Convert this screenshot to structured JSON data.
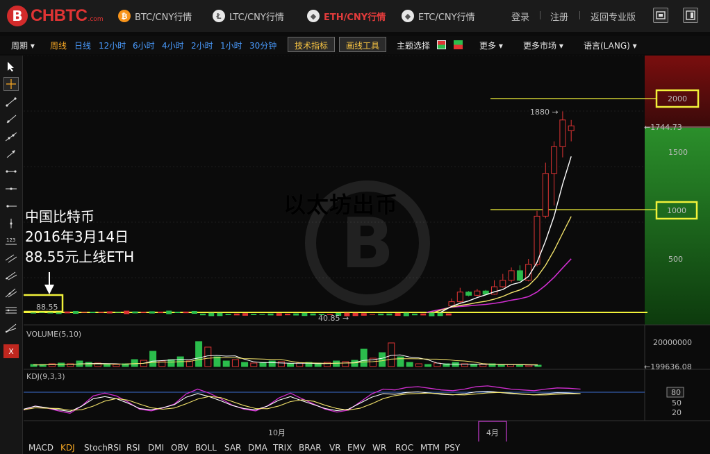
{
  "header": {
    "logo_text": "CHBTC",
    "logo_suffix": ".com",
    "logo_mark": "B",
    "markets": [
      {
        "label": "BTC/CNY行情",
        "icon": "bitcoin-icon",
        "glyph": "₿",
        "color": "#f7931a",
        "active": false
      },
      {
        "label": "LTC/CNY行情",
        "icon": "litecoin-icon",
        "glyph": "Ł",
        "color": "#bfbfbf",
        "active": false
      },
      {
        "label": "ETH/CNY行情",
        "icon": "ethereum-icon",
        "glyph": "◆",
        "color": "#e0e0e0",
        "active": true
      },
      {
        "label": "ETC/CNY行情",
        "icon": "ethereum-classic-icon",
        "glyph": "◆",
        "color": "#e0e0e0",
        "active": false
      }
    ],
    "login": "登录",
    "register": "注册",
    "back_pro": "返回专业版"
  },
  "toolbar": {
    "period": "周期",
    "intervals": [
      "周线",
      "日线",
      "12小时",
      "6小时",
      "4小时",
      "2小时",
      "1小时",
      "30分钟"
    ],
    "active_interval": "周线",
    "tech_indicators": "技术指标",
    "drawing_tools": "画线工具",
    "theme": "主题选择",
    "more": "更多",
    "more_markets": "更多市场",
    "language": "语言(LANG)"
  },
  "rail_tools": [
    "cursor-icon",
    "crosshair-icon",
    "segment-icon",
    "ray-icon",
    "extended-line-icon",
    "arrow-line-icon",
    "horizontal-segment-icon",
    "horizontal-line-icon",
    "horizontal-ray-icon",
    "vertical-line-icon",
    "price-label-icon",
    "parallel-channel-icon",
    "fibonacci-icon",
    "pitchfork-icon",
    "fib-fan-icon",
    "measure-icon",
    "delete-icon"
  ],
  "annotation": {
    "line1": "中国比特币",
    "line2": "2016年3月14日",
    "line3": "88.55元上线ETH",
    "price_box": "88.55"
  },
  "watermark": "以太坊出币",
  "price_levels": {
    "high_line": "2000",
    "mid_line": "1000"
  },
  "chart_labels": {
    "high_marker": "1880 →",
    "low_marker": "40.85 →",
    "last_price": "←1744.73",
    "volume_title": "VOLUME(5,10)",
    "volume_last": "←199636.08",
    "kdj_title": "KDJ(9,3,3)",
    "x_label_oct": "10月",
    "x_label_apr": "4月",
    "close_tool": "X"
  },
  "colors": {
    "up": "#e03434",
    "down": "#2bbd4c",
    "ma5": "#ffffff",
    "ma10": "#f3e36b",
    "ma20": "#d12ed1",
    "kline_base": "#f2f23a",
    "bg": "#0b0b0b"
  },
  "chart_data": [
    {
      "type": "candlestick",
      "title": "ETH/CNY",
      "y_ticks": [
        500,
        1000,
        1500,
        2000
      ],
      "ylim": [
        0,
        2300
      ],
      "high": 1880,
      "low": 40.85,
      "last": 1744.73,
      "recent_candles": [
        {
          "o": 60,
          "c": 100,
          "h": 130,
          "l": 55
        },
        {
          "o": 100,
          "c": 190,
          "h": 230,
          "l": 90
        },
        {
          "o": 190,
          "c": 160,
          "h": 200,
          "l": 150
        },
        {
          "o": 160,
          "c": 200,
          "h": 220,
          "l": 150
        },
        {
          "o": 200,
          "c": 170,
          "h": 210,
          "l": 160
        },
        {
          "o": 170,
          "c": 240,
          "h": 300,
          "l": 165
        },
        {
          "o": 240,
          "c": 300,
          "h": 360,
          "l": 230
        },
        {
          "o": 300,
          "c": 390,
          "h": 420,
          "l": 280
        },
        {
          "o": 390,
          "c": 300,
          "h": 440,
          "l": 290
        },
        {
          "o": 300,
          "c": 450,
          "h": 500,
          "l": 290
        },
        {
          "o": 450,
          "c": 900,
          "h": 950,
          "l": 430
        },
        {
          "o": 900,
          "c": 1300,
          "h": 1400,
          "l": 880
        },
        {
          "o": 1300,
          "c": 1550,
          "h": 1600,
          "l": 1000
        },
        {
          "o": 1550,
          "c": 1800,
          "h": 1880,
          "l": 1450
        },
        {
          "o": 1700,
          "c": 1744.73,
          "h": 1800,
          "l": 1600
        }
      ],
      "ma5_last": 1235,
      "ma10_last": 850,
      "ma20_last": 300
    },
    {
      "type": "bar",
      "title": "VOLUME(5,10)",
      "y_ticks": [
        20000000
      ],
      "last": 199636.08
    },
    {
      "type": "line",
      "title": "KDJ(9,3,3)",
      "y_ticks": [
        20,
        50,
        80
      ]
    }
  ],
  "indicator_tabs": [
    "MACD",
    "KDJ",
    "StochRSI",
    "RSI",
    "DMI",
    "OBV",
    "BOLL",
    "SAR",
    "DMA",
    "TRIX",
    "BRAR",
    "VR",
    "EMV",
    "WR",
    "ROC",
    "MTM",
    "PSY"
  ],
  "active_indicator": "KDJ"
}
